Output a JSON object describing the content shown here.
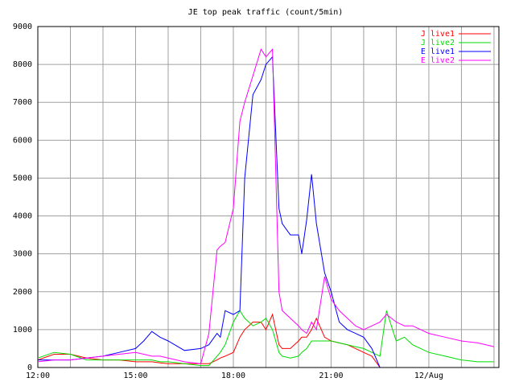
{
  "chart_data": {
    "type": "line",
    "title": "JE top peak traffic (count/5min)",
    "x": [
      12,
      12.5,
      13,
      13.5,
      14,
      14.5,
      15,
      15.25,
      15.5,
      15.75,
      16,
      16.5,
      17,
      17.25,
      17.5,
      17.6,
      17.75,
      18,
      18.2,
      18.35,
      18.6,
      18.85,
      19,
      19.2,
      19.4,
      19.5,
      19.75,
      20,
      20.1,
      20.25,
      20.4,
      20.55,
      20.8,
      21,
      21.25,
      21.5,
      21.75,
      22,
      22.25,
      22.5,
      22.7,
      23,
      23.25,
      23.5,
      24,
      24.5,
      25,
      25.5,
      26
    ],
    "series": [
      {
        "name": "J live1",
        "color": "#ff0000",
        "values": [
          200,
          350,
          350,
          250,
          200,
          200,
          150,
          150,
          150,
          120,
          100,
          100,
          100,
          100,
          200,
          250,
          300,
          400,
          800,
          1000,
          1200,
          1200,
          1000,
          1400,
          600,
          500,
          500,
          700,
          800,
          800,
          1000,
          1300,
          800,
          700,
          650,
          600,
          500,
          400,
          300,
          0,
          null,
          null,
          null,
          null,
          null,
          null,
          null,
          null,
          null
        ]
      },
      {
        "name": "J live2",
        "color": "#00dd00",
        "values": [
          250,
          400,
          350,
          200,
          200,
          200,
          200,
          200,
          200,
          150,
          150,
          100,
          50,
          50,
          300,
          400,
          600,
          1200,
          1500,
          1300,
          1100,
          1200,
          1300,
          1000,
          400,
          300,
          250,
          300,
          400,
          500,
          700,
          700,
          700,
          700,
          650,
          600,
          550,
          500,
          400,
          300,
          1500,
          700,
          800,
          600,
          400,
          300,
          200,
          150,
          150
        ]
      },
      {
        "name": "E live1",
        "color": "#0000ff",
        "values": [
          200,
          200,
          200,
          250,
          300,
          400,
          500,
          700,
          950,
          800,
          700,
          450,
          500,
          600,
          900,
          800,
          1500,
          1400,
          1500,
          5000,
          7200,
          7600,
          8000,
          8200,
          4200,
          3800,
          3500,
          3500,
          3000,
          3900,
          5100,
          3800,
          2500,
          2000,
          1200,
          1000,
          900,
          800,
          500,
          0,
          null,
          null,
          null,
          null,
          null,
          null,
          null,
          null,
          null
        ]
      },
      {
        "name": "E live2",
        "color": "#ff00ff",
        "values": [
          150,
          200,
          200,
          250,
          300,
          350,
          400,
          350,
          300,
          300,
          250,
          150,
          100,
          900,
          3100,
          3200,
          3300,
          4200,
          6500,
          7000,
          7700,
          8400,
          8200,
          8400,
          2000,
          1500,
          1300,
          1100,
          1000,
          900,
          1200,
          1000,
          2400,
          1800,
          1500,
          1300,
          1100,
          1000,
          1100,
          1200,
          1400,
          1200,
          1100,
          1100,
          900,
          800,
          700,
          650,
          550
        ]
      }
    ],
    "xlim": [
      12,
      26.15
    ],
    "xticks": [
      {
        "value": 12,
        "label": "12:00"
      },
      {
        "value": 15,
        "label": "15:00"
      },
      {
        "value": 18,
        "label": "18:00"
      },
      {
        "value": 21,
        "label": "21:00"
      },
      {
        "value": 24,
        "label": "12/Aug"
      }
    ],
    "x_minor_ticks": [
      13,
      14,
      16,
      17,
      19,
      20,
      22,
      23,
      25,
      26
    ],
    "ylim": [
      0,
      9000
    ],
    "yticks": [
      0,
      1000,
      2000,
      3000,
      4000,
      5000,
      6000,
      7000,
      8000,
      9000
    ],
    "grid": true,
    "legend": "upper right"
  }
}
